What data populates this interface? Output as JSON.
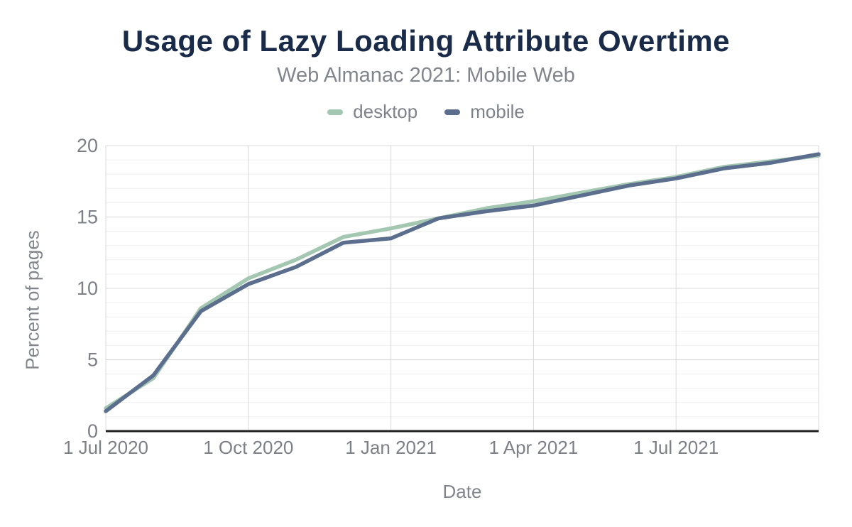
{
  "chart_data": {
    "type": "line",
    "title": "Usage of Lazy Loading Attribute Overtime",
    "subtitle": "Web Almanac 2021: Mobile Web",
    "xlabel": "Date",
    "ylabel": "Percent of pages",
    "ylim": [
      0,
      20
    ],
    "y_ticks": [
      0,
      5,
      10,
      15,
      20
    ],
    "minor_y_step": 1,
    "grid": true,
    "legend_position": "top",
    "x": [
      "1 Jul 2020",
      "1 Aug 2020",
      "1 Sep 2020",
      "1 Oct 2020",
      "1 Nov 2020",
      "1 Dec 2020",
      "1 Jan 2021",
      "1 Feb 2021",
      "1 Mar 2021",
      "1 Apr 2021",
      "1 May 2021",
      "1 Jun 2021",
      "1 Jul 2021",
      "1 Aug 2021",
      "1 Sep 2021",
      "1 Oct 2021"
    ],
    "x_tick_labels": [
      {
        "index": 0,
        "label": "1 Jul 2020"
      },
      {
        "index": 3,
        "label": "1 Oct 2020"
      },
      {
        "index": 6,
        "label": "1 Jan 2021"
      },
      {
        "index": 9,
        "label": "1 Apr 2021"
      },
      {
        "index": 12,
        "label": "1 Jul 2021"
      }
    ],
    "series": [
      {
        "name": "desktop",
        "color": "#a4c7b2",
        "values": [
          1.6,
          3.7,
          8.6,
          10.7,
          12.0,
          13.6,
          14.2,
          14.9,
          15.6,
          16.1,
          16.7,
          17.3,
          17.8,
          18.5,
          18.9,
          19.3
        ]
      },
      {
        "name": "mobile",
        "color": "#5b6e8e",
        "values": [
          1.4,
          3.9,
          8.4,
          10.3,
          11.5,
          13.2,
          13.5,
          14.9,
          15.4,
          15.8,
          16.5,
          17.2,
          17.7,
          18.4,
          18.8,
          19.4
        ]
      }
    ],
    "colors": {
      "title": "#1a2b49",
      "text_gray": "#82868c",
      "tick_label": "#7d8086",
      "grid_major": "#d8d8d8",
      "grid_minor": "#f0f0f0",
      "axis_line": "#212121"
    }
  }
}
